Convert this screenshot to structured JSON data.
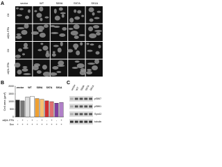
{
  "panel_a": {
    "label": "A",
    "columns": [
      "vector",
      "WT",
      "S89A",
      "S97A",
      "S91A"
    ],
    "rows": [
      "Ctl",
      "α6β4-ITFA",
      "Ctl",
      "α6β4-ITFA"
    ]
  },
  "chart_data": {
    "type": "bar",
    "panel_label": "B",
    "ylabel": "Cell area (µm²)",
    "categories": [
      null,
      null,
      null,
      null,
      null,
      null,
      null,
      null,
      null,
      null
    ],
    "values": [
      1100,
      1050,
      1300,
      1350,
      1200,
      1150,
      1050,
      1000,
      900,
      950
    ],
    "colors": [
      "#222222",
      "#777777",
      "#dddddd",
      "#ffffff",
      "#f0a030",
      "#f5c070",
      "#d03030",
      "#e07070",
      "#8040a0",
      "#b080c8"
    ],
    "ylim": [
      0,
      2000
    ],
    "yticks": [
      0,
      500,
      1000,
      1500,
      2000
    ],
    "groups": [
      "vector",
      "WT",
      "S89A",
      "S97A",
      "S91A"
    ],
    "group_colors": [
      "#222222",
      "#999999",
      "#f0a030",
      "#d03030",
      "#8040a0"
    ],
    "conditions": [
      {
        "name": "α6β4-ITFA",
        "signs": [
          "-",
          "+",
          "-",
          "+",
          "-",
          "+",
          "-",
          "+",
          "-",
          "+"
        ]
      },
      {
        "name": "Dox",
        "signs": [
          "+",
          "+",
          "+",
          "+",
          "+",
          "+",
          "+",
          "+",
          "+",
          "+"
        ]
      }
    ]
  },
  "panel_c": {
    "label": "C",
    "lanes": [
      "vector",
      "WT",
      "S89A",
      "S97A",
      "S91A"
    ],
    "bands": [
      "pS867",
      "pS861",
      "SynA2",
      "tubulin"
    ]
  }
}
